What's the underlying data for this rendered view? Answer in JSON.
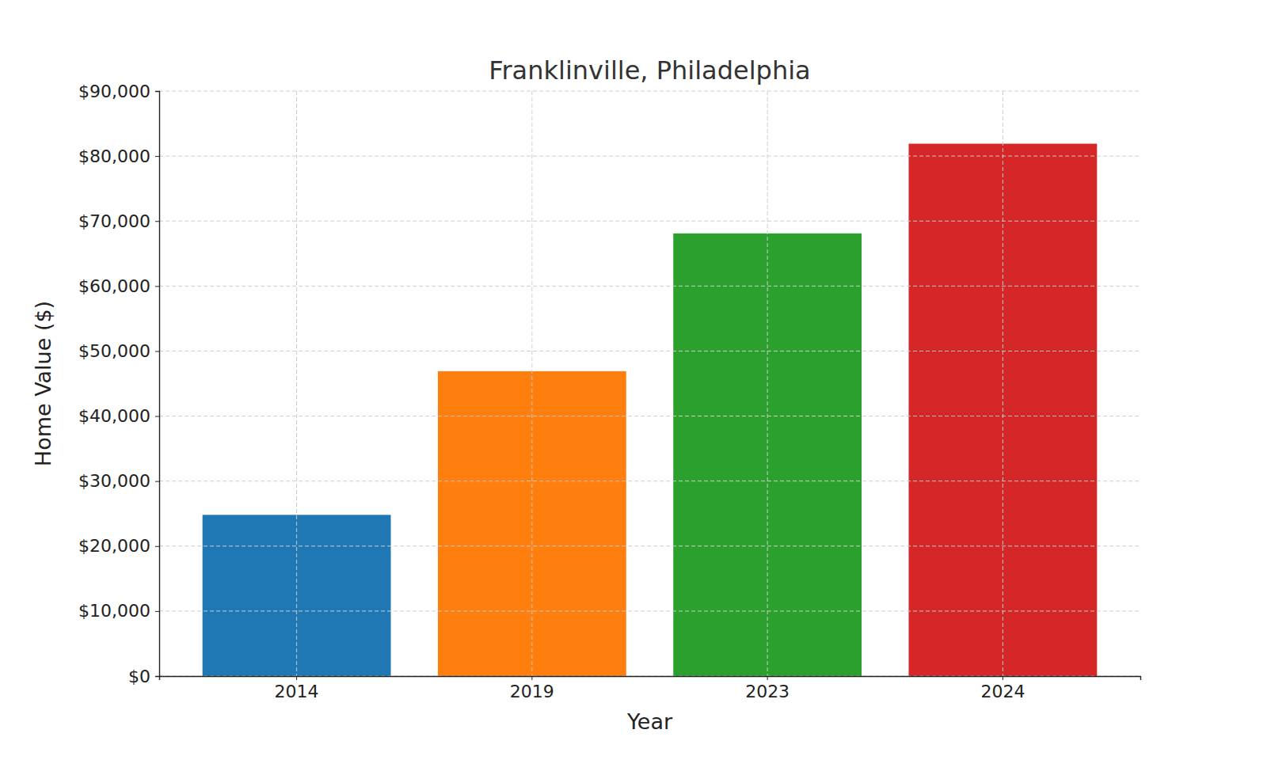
{
  "chart_data": {
    "type": "bar",
    "title": "Franklinville, Philadelphia",
    "x_label": "Year",
    "y_label": "Home Value ($)",
    "categories": [
      "2014",
      "2019",
      "2023",
      "2024"
    ],
    "values": [
      24800,
      46900,
      68100,
      81900
    ],
    "colors": [
      "#1f77b4",
      "#ff7f0e",
      "#2ca02c",
      "#d62728"
    ],
    "ylim": [
      0,
      90000
    ],
    "yticks": [
      {
        "value": 0,
        "label": "$0"
      },
      {
        "value": 10000,
        "label": "$10,000"
      },
      {
        "value": 20000,
        "label": "$20,000"
      },
      {
        "value": 30000,
        "label": "$30,000"
      },
      {
        "value": 40000,
        "label": "$40,000"
      },
      {
        "value": 50000,
        "label": "$50,000"
      },
      {
        "value": 60000,
        "label": "$60,000"
      },
      {
        "value": 70000,
        "label": "$70,000"
      },
      {
        "value": 80000,
        "label": "$80,000"
      },
      {
        "value": 90000,
        "label": "$90,000"
      }
    ],
    "grid": true
  }
}
